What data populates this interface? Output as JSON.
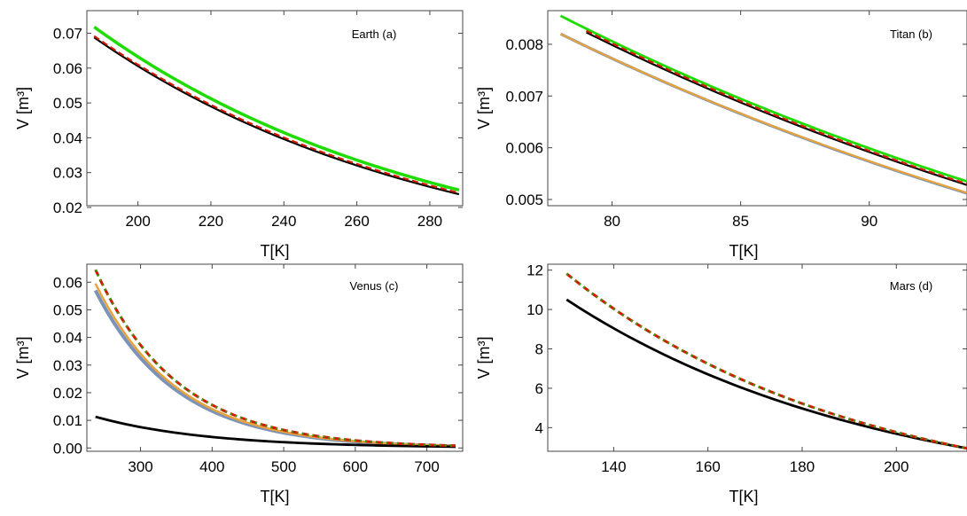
{
  "chart_data": [
    {
      "type": "line",
      "panel_label": "Earth (a)",
      "xlabel": "T[K]",
      "ylabel": "V [m³]",
      "xlim": [
        186,
        289
      ],
      "ylim": [
        0.0205,
        0.0765
      ],
      "xticks": [
        200,
        220,
        240,
        260,
        280
      ],
      "xtick_labels": [
        "200",
        "220",
        "240",
        "260",
        "280"
      ],
      "yticks": [
        0.02,
        0.03,
        0.04,
        0.05,
        0.06,
        0.07
      ],
      "ytick_labels": [
        "0.02",
        "0.03",
        "0.04",
        "0.05",
        "0.06",
        "0.07"
      ],
      "grid": false,
      "series": [
        {
          "color": "#1fdc00",
          "dash": "none",
          "width": 3.5,
          "x": [
            188,
            288
          ],
          "y": [
            0.0718,
            0.025
          ]
        },
        {
          "color": "#000000",
          "dash": "none",
          "width": 2.2,
          "x": [
            188,
            288
          ],
          "y": [
            0.0688,
            0.0238
          ]
        },
        {
          "color": "#d11a00",
          "dash": "7,4",
          "width": 2.2,
          "x": [
            188,
            288
          ],
          "y": [
            0.0692,
            0.0242
          ]
        }
      ]
    },
    {
      "type": "line",
      "panel_label": "Titan (b)",
      "xlabel": "T[K]",
      "ylabel": "V [m³]",
      "xlim": [
        77.5,
        93.8
      ],
      "ylim": [
        0.00488,
        0.00865
      ],
      "xticks": [
        80,
        85,
        90
      ],
      "xtick_labels": [
        "80",
        "85",
        "90"
      ],
      "yticks": [
        0.005,
        0.006,
        0.007,
        0.008
      ],
      "ytick_labels": [
        "0.005",
        "0.006",
        "0.007",
        "0.008"
      ],
      "grid": false,
      "series": [
        {
          "color": "#7b93b8",
          "dash": "none",
          "width": 3.2,
          "x": [
            78,
            93.8
          ],
          "y": [
            0.0082,
            0.00512
          ]
        },
        {
          "color": "#e7a23a",
          "dash": "none",
          "width": 2.2,
          "x": [
            78,
            93.8
          ],
          "y": [
            0.0082,
            0.00513
          ]
        },
        {
          "color": "#1fdc00",
          "dash": "none",
          "width": 2.8,
          "x": [
            78,
            93.8
          ],
          "y": [
            0.00855,
            0.00535
          ]
        },
        {
          "color": "#000000",
          "dash": "none",
          "width": 2.2,
          "x": [
            79,
            93.8
          ],
          "y": [
            0.00823,
            0.00528
          ]
        },
        {
          "color": "#d11a00",
          "dash": "7,4",
          "width": 2.2,
          "x": [
            79,
            93.8
          ],
          "y": [
            0.00826,
            0.0053
          ]
        }
      ]
    },
    {
      "type": "line",
      "panel_label": "Venus (c)",
      "xlabel": "T[K]",
      "ylabel": "V [m³]",
      "xlim": [
        225,
        750
      ],
      "ylim": [
        -0.0012,
        0.0665
      ],
      "xticks": [
        300,
        400,
        500,
        600,
        700
      ],
      "xtick_labels": [
        "300",
        "400",
        "500",
        "600",
        "700"
      ],
      "yticks": [
        0.0,
        0.01,
        0.02,
        0.03,
        0.04,
        0.05,
        0.06
      ],
      "ytick_labels": [
        "0.00",
        "0.01",
        "0.02",
        "0.03",
        "0.04",
        "0.05",
        "0.06"
      ],
      "grid": false,
      "series": [
        {
          "color": "#7b93b8",
          "dash": "none",
          "width": 4.0,
          "x": [
            237,
            740
          ],
          "y": [
            0.057,
            0.00065
          ]
        },
        {
          "color": "#e7a23a",
          "dash": "none",
          "width": 2.5,
          "x": [
            237,
            740
          ],
          "y": [
            0.0595,
            0.0007
          ]
        },
        {
          "color": "#000000",
          "dash": "none",
          "width": 2.8,
          "x": [
            237,
            740
          ],
          "y": [
            0.0113,
            0.00045
          ]
        },
        {
          "color": "#d11a00",
          "dash": "8,4",
          "width": 3.0,
          "x": [
            237,
            740
          ],
          "y": [
            0.0645,
            0.0008
          ]
        },
        {
          "color": "#2fa800",
          "dash": "2,4",
          "width": 2.0,
          "x": [
            237,
            740
          ],
          "y": [
            0.0645,
            0.0008
          ]
        }
      ]
    },
    {
      "type": "line",
      "panel_label": "Mars (d)",
      "xlabel": "T[K]",
      "ylabel": "V [m³]",
      "xlim": [
        126,
        215
      ],
      "ylim": [
        2.8,
        12.3
      ],
      "xticks": [
        140,
        160,
        180,
        200
      ],
      "xtick_labels": [
        "140",
        "160",
        "180",
        "200"
      ],
      "yticks": [
        4,
        6,
        8,
        10,
        12
      ],
      "ytick_labels": [
        "4",
        "6",
        "8",
        "10",
        "12"
      ],
      "grid": false,
      "series": [
        {
          "color": "#000000",
          "dash": "none",
          "width": 2.8,
          "x": [
            130,
            215
          ],
          "y": [
            10.5,
            2.95
          ]
        },
        {
          "color": "#d11a00",
          "dash": "8,4",
          "width": 3.0,
          "x": [
            130,
            215
          ],
          "y": [
            11.82,
            2.95
          ]
        },
        {
          "color": "#2fa800",
          "dash": "2,4",
          "width": 2.0,
          "x": [
            130,
            215
          ],
          "y": [
            11.82,
            2.95
          ]
        }
      ]
    }
  ]
}
